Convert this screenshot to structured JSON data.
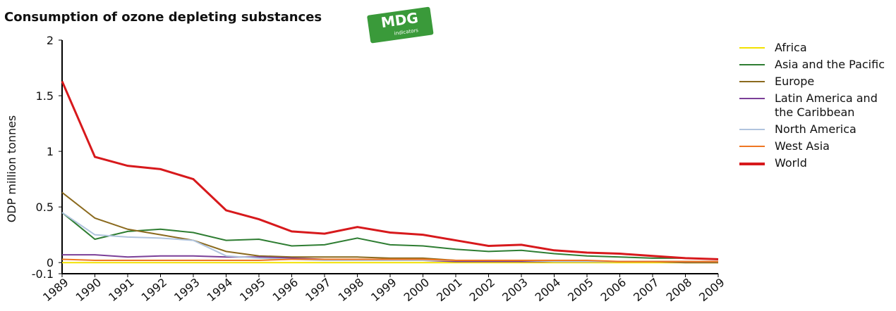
{
  "chart_data": {
    "type": "line",
    "title": "Consumption of ozone depleting substances",
    "badge": {
      "text": "MDG",
      "subtext": "indicators"
    },
    "y_label": "ODP million tonnes",
    "categories": [
      "1989",
      "1990",
      "1991",
      "1992",
      "1993",
      "1994",
      "1995",
      "1996",
      "1997",
      "1998",
      "1999",
      "2000",
      "2001",
      "2002",
      "2003",
      "2004",
      "2005",
      "2006",
      "2007",
      "2008",
      "2009"
    ],
    "ylim": [
      -0.1,
      2
    ],
    "yticks": [
      -0.1,
      0,
      0.5,
      1,
      1.5,
      2
    ],
    "series": [
      {
        "name": "Africa",
        "color": "#f2e100",
        "values": [
          0.0,
          0.0,
          0.0,
          0.0,
          0.0,
          0.0,
          0.0,
          0.0,
          0.0,
          0.0,
          0.0,
          0.0,
          0.0,
          0.0,
          0.0,
          0.0,
          0.0,
          0.0,
          0.0,
          0.0,
          0.0
        ]
      },
      {
        "name": "Asia and the Pacific",
        "color": "#2e7d32",
        "values": [
          0.45,
          0.21,
          0.28,
          0.3,
          0.27,
          0.2,
          0.21,
          0.15,
          0.16,
          0.22,
          0.16,
          0.15,
          0.12,
          0.1,
          0.11,
          0.08,
          0.06,
          0.05,
          0.04,
          0.04,
          0.03
        ]
      },
      {
        "name": "Europe",
        "color": "#8b6a1e",
        "values": [
          0.63,
          0.4,
          0.3,
          0.25,
          0.2,
          0.1,
          0.06,
          0.05,
          0.05,
          0.05,
          0.04,
          0.04,
          0.02,
          0.02,
          0.01,
          0.01,
          0.01,
          0.01,
          0.01,
          0.0,
          0.0
        ]
      },
      {
        "name": "Latin America and the Caribbean",
        "color": "#7b3f98",
        "values": [
          0.07,
          0.07,
          0.05,
          0.06,
          0.06,
          0.05,
          0.05,
          0.04,
          0.03,
          0.02,
          0.02,
          0.02,
          0.01,
          0.01,
          0.01,
          0.01,
          0.01,
          0.01,
          0.01,
          0.01,
          0.01
        ]
      },
      {
        "name": "North America",
        "color": "#b0c4de",
        "values": [
          0.45,
          0.25,
          0.23,
          0.22,
          0.2,
          0.06,
          0.04,
          0.03,
          0.02,
          0.02,
          0.02,
          0.02,
          0.02,
          0.02,
          0.02,
          0.01,
          0.01,
          0.01,
          0.01,
          0.01,
          0.01
        ]
      },
      {
        "name": "West Asia",
        "color": "#ef7622",
        "values": [
          0.03,
          0.02,
          0.02,
          0.02,
          0.02,
          0.02,
          0.02,
          0.03,
          0.03,
          0.03,
          0.03,
          0.03,
          0.02,
          0.02,
          0.02,
          0.02,
          0.02,
          0.01,
          0.01,
          0.01,
          0.01
        ]
      },
      {
        "name": "World",
        "color": "#d7191c",
        "values": [
          1.63,
          0.95,
          0.87,
          0.84,
          0.75,
          0.47,
          0.39,
          0.28,
          0.26,
          0.32,
          0.27,
          0.25,
          0.2,
          0.15,
          0.16,
          0.11,
          0.09,
          0.08,
          0.06,
          0.04,
          0.03
        ]
      }
    ]
  }
}
